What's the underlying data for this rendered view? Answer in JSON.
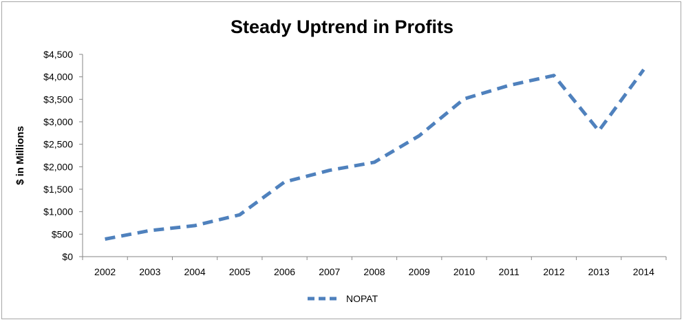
{
  "chart_data": {
    "type": "line",
    "title": "Steady Uptrend in Profits",
    "xlabel": "",
    "ylabel": "$ in Millions",
    "categories": [
      "2002",
      "2003",
      "2004",
      "2005",
      "2006",
      "2007",
      "2008",
      "2009",
      "2010",
      "2011",
      "2012",
      "2013",
      "2014"
    ],
    "series": [
      {
        "name": "NOPAT",
        "color": "#4f81bd",
        "line_style": "dashed",
        "values": [
          390,
          580,
          690,
          930,
          1660,
          1920,
          2100,
          2690,
          3510,
          3810,
          4030,
          2800,
          4160
        ]
      }
    ],
    "ylim": [
      0,
      4500
    ],
    "yticks": [
      0,
      500,
      1000,
      1500,
      2000,
      2500,
      3000,
      3500,
      4000,
      4500
    ],
    "ytick_labels": [
      "$0",
      "$500",
      "$1,000",
      "$1,500",
      "$2,000",
      "$2,500",
      "$3,000",
      "$3,500",
      "$4,000",
      "$4,500"
    ],
    "grid": false,
    "legend_position": "bottom"
  }
}
